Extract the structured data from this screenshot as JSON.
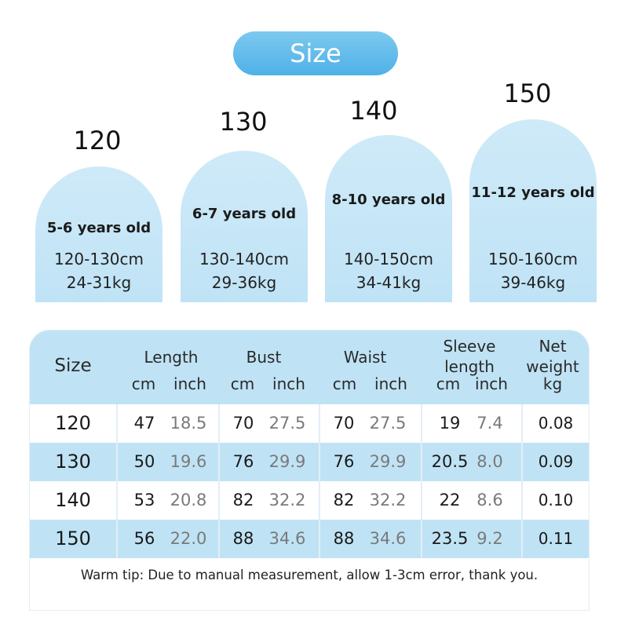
{
  "title": "Size",
  "cards": [
    {
      "size": "120",
      "age": "5-6 years old",
      "height": "120-130cm",
      "weight": "24-31kg"
    },
    {
      "size": "130",
      "age": "6-7 years old",
      "height": "130-140cm",
      "weight": "29-36kg"
    },
    {
      "size": "140",
      "age": "8-10 years old",
      "height": "140-150cm",
      "weight": "34-41kg"
    },
    {
      "size": "150",
      "age": "11-12 years old",
      "height": "150-160cm",
      "weight": "39-46kg"
    }
  ],
  "table": {
    "headers": {
      "size": "Size",
      "length": "Length",
      "bust": "Bust",
      "waist": "Waist",
      "sleeve_line1": "Sleeve",
      "sleeve_line2": "length",
      "net_line1": "Net",
      "net_line2": "weight",
      "cm": "cm",
      "inch": "inch",
      "kg": "kg"
    },
    "rows": [
      {
        "size": "120",
        "length_cm": "47",
        "length_inch": "18.5",
        "bust_cm": "70",
        "bust_inch": "27.5",
        "waist_cm": "70",
        "waist_inch": "27.5",
        "sleeve_cm": "19",
        "sleeve_inch": "7.4",
        "net_kg": "0.08"
      },
      {
        "size": "130",
        "length_cm": "50",
        "length_inch": "19.6",
        "bust_cm": "76",
        "bust_inch": "29.9",
        "waist_cm": "76",
        "waist_inch": "29.9",
        "sleeve_cm": "20.5",
        "sleeve_inch": "8.0",
        "net_kg": "0.09"
      },
      {
        "size": "140",
        "length_cm": "53",
        "length_inch": "20.8",
        "bust_cm": "82",
        "bust_inch": "32.2",
        "waist_cm": "82",
        "waist_inch": "32.2",
        "sleeve_cm": "22",
        "sleeve_inch": "8.6",
        "net_kg": "0.10"
      },
      {
        "size": "150",
        "length_cm": "56",
        "length_inch": "22.0",
        "bust_cm": "88",
        "bust_inch": "34.6",
        "waist_cm": "88",
        "waist_inch": "34.6",
        "sleeve_cm": "23.5",
        "sleeve_inch": "9.2",
        "net_kg": "0.11"
      }
    ]
  },
  "tip": "Warm tip: Due to manual measurement, allow 1-3cm error, thank you.",
  "colors": {
    "accent": "#4fb1e8",
    "card_bg": "#c6e6f7",
    "header_bg": "#bfe3f5"
  }
}
